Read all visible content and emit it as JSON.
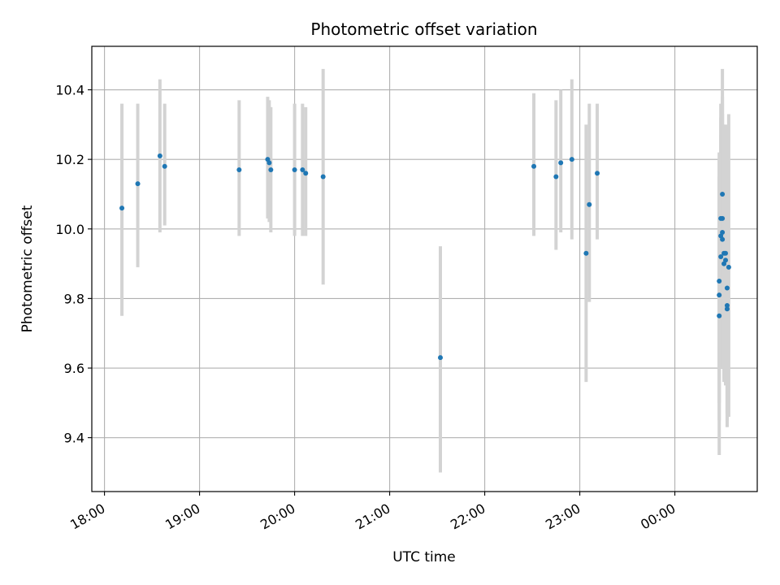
{
  "chart_data": {
    "type": "scatter",
    "title": "Photometric offset variation",
    "xlabel": "UTC time",
    "ylabel": "Photometric offset",
    "x_axis": "time (UTC, HH:MM), date axis",
    "xlim": [
      "17:52",
      "00:52"
    ],
    "ylim": [
      9.245,
      10.525
    ],
    "grid": true,
    "legend": "none",
    "x_ticks": [
      "18:00",
      "19:00",
      "20:00",
      "21:00",
      "22:00",
      "23:00",
      "00:00"
    ],
    "y_ticks": [
      "9.4",
      "9.6",
      "9.8",
      "10.0",
      "10.2",
      "10.4"
    ],
    "colors": {
      "points": "#1f77b4",
      "error_bars": "#d3d3d3",
      "grid": "#b0b0b0"
    },
    "points": [
      {
        "x": "18:11",
        "y": 10.06,
        "ylow": 9.75,
        "yhigh": 10.36
      },
      {
        "x": "18:21",
        "y": 10.13,
        "ylow": 9.89,
        "yhigh": 10.36
      },
      {
        "x": "18:35",
        "y": 10.21,
        "ylow": 9.99,
        "yhigh": 10.43
      },
      {
        "x": "18:38",
        "y": 10.18,
        "ylow": 10.01,
        "yhigh": 10.36
      },
      {
        "x": "19:25",
        "y": 10.17,
        "ylow": 9.98,
        "yhigh": 10.37
      },
      {
        "x": "19:43",
        "y": 10.2,
        "ylow": 10.03,
        "yhigh": 10.38
      },
      {
        "x": "19:44",
        "y": 10.19,
        "ylow": 10.02,
        "yhigh": 10.37
      },
      {
        "x": "19:45",
        "y": 10.17,
        "ylow": 9.99,
        "yhigh": 10.35
      },
      {
        "x": "20:00",
        "y": 10.17,
        "ylow": 9.98,
        "yhigh": 10.36
      },
      {
        "x": "20:05",
        "y": 10.17,
        "ylow": 9.98,
        "yhigh": 10.36
      },
      {
        "x": "20:07",
        "y": 10.16,
        "ylow": 9.98,
        "yhigh": 10.35
      },
      {
        "x": "20:18",
        "y": 10.15,
        "ylow": 9.84,
        "yhigh": 10.46
      },
      {
        "x": "21:32",
        "y": 9.63,
        "ylow": 9.3,
        "yhigh": 9.95
      },
      {
        "x": "22:31",
        "y": 10.18,
        "ylow": 9.98,
        "yhigh": 10.39
      },
      {
        "x": "22:45",
        "y": 10.15,
        "ylow": 9.94,
        "yhigh": 10.37
      },
      {
        "x": "22:48",
        "y": 10.19,
        "ylow": 9.99,
        "yhigh": 10.4
      },
      {
        "x": "22:55",
        "y": 10.2,
        "ylow": 9.97,
        "yhigh": 10.43
      },
      {
        "x": "23:04",
        "y": 9.93,
        "ylow": 9.56,
        "yhigh": 10.3
      },
      {
        "x": "23:06",
        "y": 10.07,
        "ylow": 9.79,
        "yhigh": 10.36
      },
      {
        "x": "23:11",
        "y": 10.16,
        "ylow": 9.97,
        "yhigh": 10.36
      },
      {
        "x": "00:28",
        "y": 9.75,
        "ylow": 9.35,
        "yhigh": 10.15
      },
      {
        "x": "00:28",
        "y": 9.81,
        "ylow": 9.45,
        "yhigh": 10.2
      },
      {
        "x": "00:28",
        "y": 9.85,
        "ylow": 9.5,
        "yhigh": 10.22
      },
      {
        "x": "00:29",
        "y": 9.92,
        "ylow": 9.6,
        "yhigh": 10.27
      },
      {
        "x": "00:29",
        "y": 9.98,
        "ylow": 9.65,
        "yhigh": 10.32
      },
      {
        "x": "00:29",
        "y": 10.03,
        "ylow": 9.7,
        "yhigh": 10.36
      },
      {
        "x": "00:30",
        "y": 10.1,
        "ylow": 9.75,
        "yhigh": 10.46
      },
      {
        "x": "00:30",
        "y": 10.03,
        "ylow": 9.7,
        "yhigh": 10.38
      },
      {
        "x": "00:30",
        "y": 9.99,
        "ylow": 9.62,
        "yhigh": 10.36
      },
      {
        "x": "00:30",
        "y": 9.97,
        "ylow": 9.6,
        "yhigh": 10.33
      },
      {
        "x": "00:31",
        "y": 9.93,
        "ylow": 9.57,
        "yhigh": 10.3
      },
      {
        "x": "00:31",
        "y": 9.9,
        "ylow": 9.56,
        "yhigh": 10.27
      },
      {
        "x": "00:32",
        "y": 9.93,
        "ylow": 9.58,
        "yhigh": 10.3
      },
      {
        "x": "00:32",
        "y": 9.91,
        "ylow": 9.55,
        "yhigh": 10.28
      },
      {
        "x": "00:33",
        "y": 9.83,
        "ylow": 9.43,
        "yhigh": 10.22
      },
      {
        "x": "00:33",
        "y": 9.77,
        "ylow": 9.45,
        "yhigh": 10.2
      },
      {
        "x": "00:33",
        "y": 9.78,
        "ylow": 9.47,
        "yhigh": 10.15
      },
      {
        "x": "00:34",
        "y": 9.89,
        "ylow": 9.46,
        "yhigh": 10.33
      }
    ]
  }
}
